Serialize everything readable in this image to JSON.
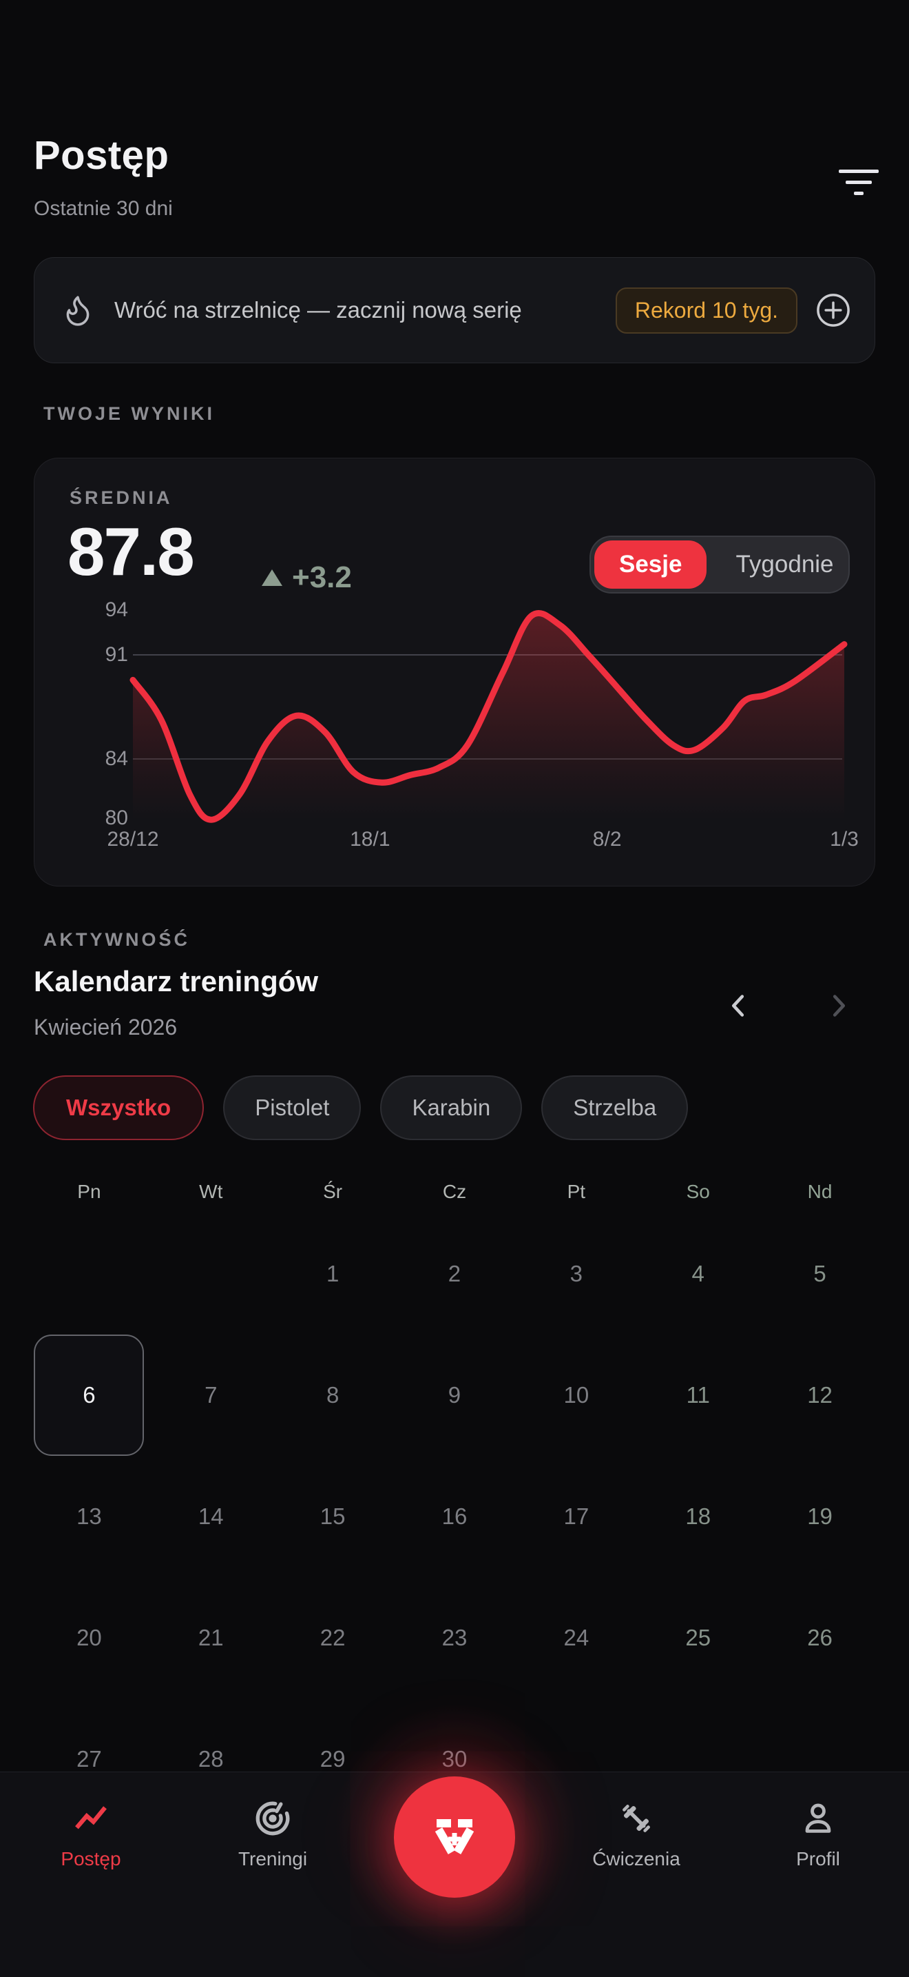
{
  "colors": {
    "accent": "#ee333f",
    "amber": "#edaa3f",
    "sage_delta": "#8c9c8f",
    "line": "#ef2f3f"
  },
  "header": {
    "title": "Postęp",
    "subtitle": "Ostatnie 30 dni"
  },
  "banner": {
    "text": "Wróć na strzelnicę — zacznij nową serię",
    "badge": "Rekord 10 tyg."
  },
  "results": {
    "section_label": "TWOJE WYNIKI",
    "metric_label": "ŚREDNIA",
    "value": "87.8",
    "delta": "+3.2",
    "toggle": {
      "options": [
        "Sesje",
        "Tygodnie"
      ],
      "selected_index": 0
    }
  },
  "chart_data": {
    "type": "line",
    "title": "ŚREDNIA",
    "legend": "Sesje",
    "ylim": [
      80,
      94
    ],
    "y_ticks": [
      94,
      91,
      84,
      80
    ],
    "gridlines_y": [
      91,
      84
    ],
    "x_tick_labels": [
      "28/12",
      "18/1",
      "8/2",
      "1/3"
    ],
    "grid": "horizontal-only",
    "series": [
      {
        "name": "Sesje",
        "points": [
          {
            "x": 0,
            "y": 89.3
          },
          {
            "x": 4,
            "y": 86.6
          },
          {
            "x": 8,
            "y": 81.6
          },
          {
            "x": 11,
            "y": 79.9
          },
          {
            "x": 15,
            "y": 81.6
          },
          {
            "x": 19,
            "y": 85.2
          },
          {
            "x": 23,
            "y": 86.9
          },
          {
            "x": 27,
            "y": 85.8
          },
          {
            "x": 31,
            "y": 83.1
          },
          {
            "x": 35,
            "y": 82.4
          },
          {
            "x": 39,
            "y": 82.9
          },
          {
            "x": 43,
            "y": 83.4
          },
          {
            "x": 47,
            "y": 84.9
          },
          {
            "x": 52,
            "y": 89.8
          },
          {
            "x": 56,
            "y": 93.6
          },
          {
            "x": 60,
            "y": 93.0
          },
          {
            "x": 64,
            "y": 91.0
          },
          {
            "x": 67,
            "y": 89.4
          },
          {
            "x": 72,
            "y": 86.7
          },
          {
            "x": 76,
            "y": 84.9
          },
          {
            "x": 79,
            "y": 84.6
          },
          {
            "x": 83,
            "y": 86.1
          },
          {
            "x": 86,
            "y": 87.9
          },
          {
            "x": 89,
            "y": 88.3
          },
          {
            "x": 93,
            "y": 89.2
          },
          {
            "x": 100,
            "y": 91.7
          }
        ]
      }
    ]
  },
  "activity": {
    "section_label": "AKTYWNOŚĆ",
    "title": "Kalendarz treningów",
    "month": "Kwiecień 2026",
    "filters": [
      {
        "label": "Wszystko",
        "selected": true
      },
      {
        "label": "Pistolet",
        "selected": false
      },
      {
        "label": "Karabin",
        "selected": false
      },
      {
        "label": "Strzelba",
        "selected": false
      }
    ],
    "weekdays": [
      "Pn",
      "Wt",
      "Śr",
      "Cz",
      "Pt",
      "So",
      "Nd"
    ],
    "month_layout": {
      "first_weekday_index": 2,
      "num_days": 30
    },
    "selected_day": 6
  },
  "nav": {
    "items": [
      {
        "label": "Postęp",
        "active": true
      },
      {
        "label": "Treningi",
        "active": false
      },
      {
        "label": "Ćwiczenia",
        "active": false
      },
      {
        "label": "Profil",
        "active": false
      }
    ]
  }
}
